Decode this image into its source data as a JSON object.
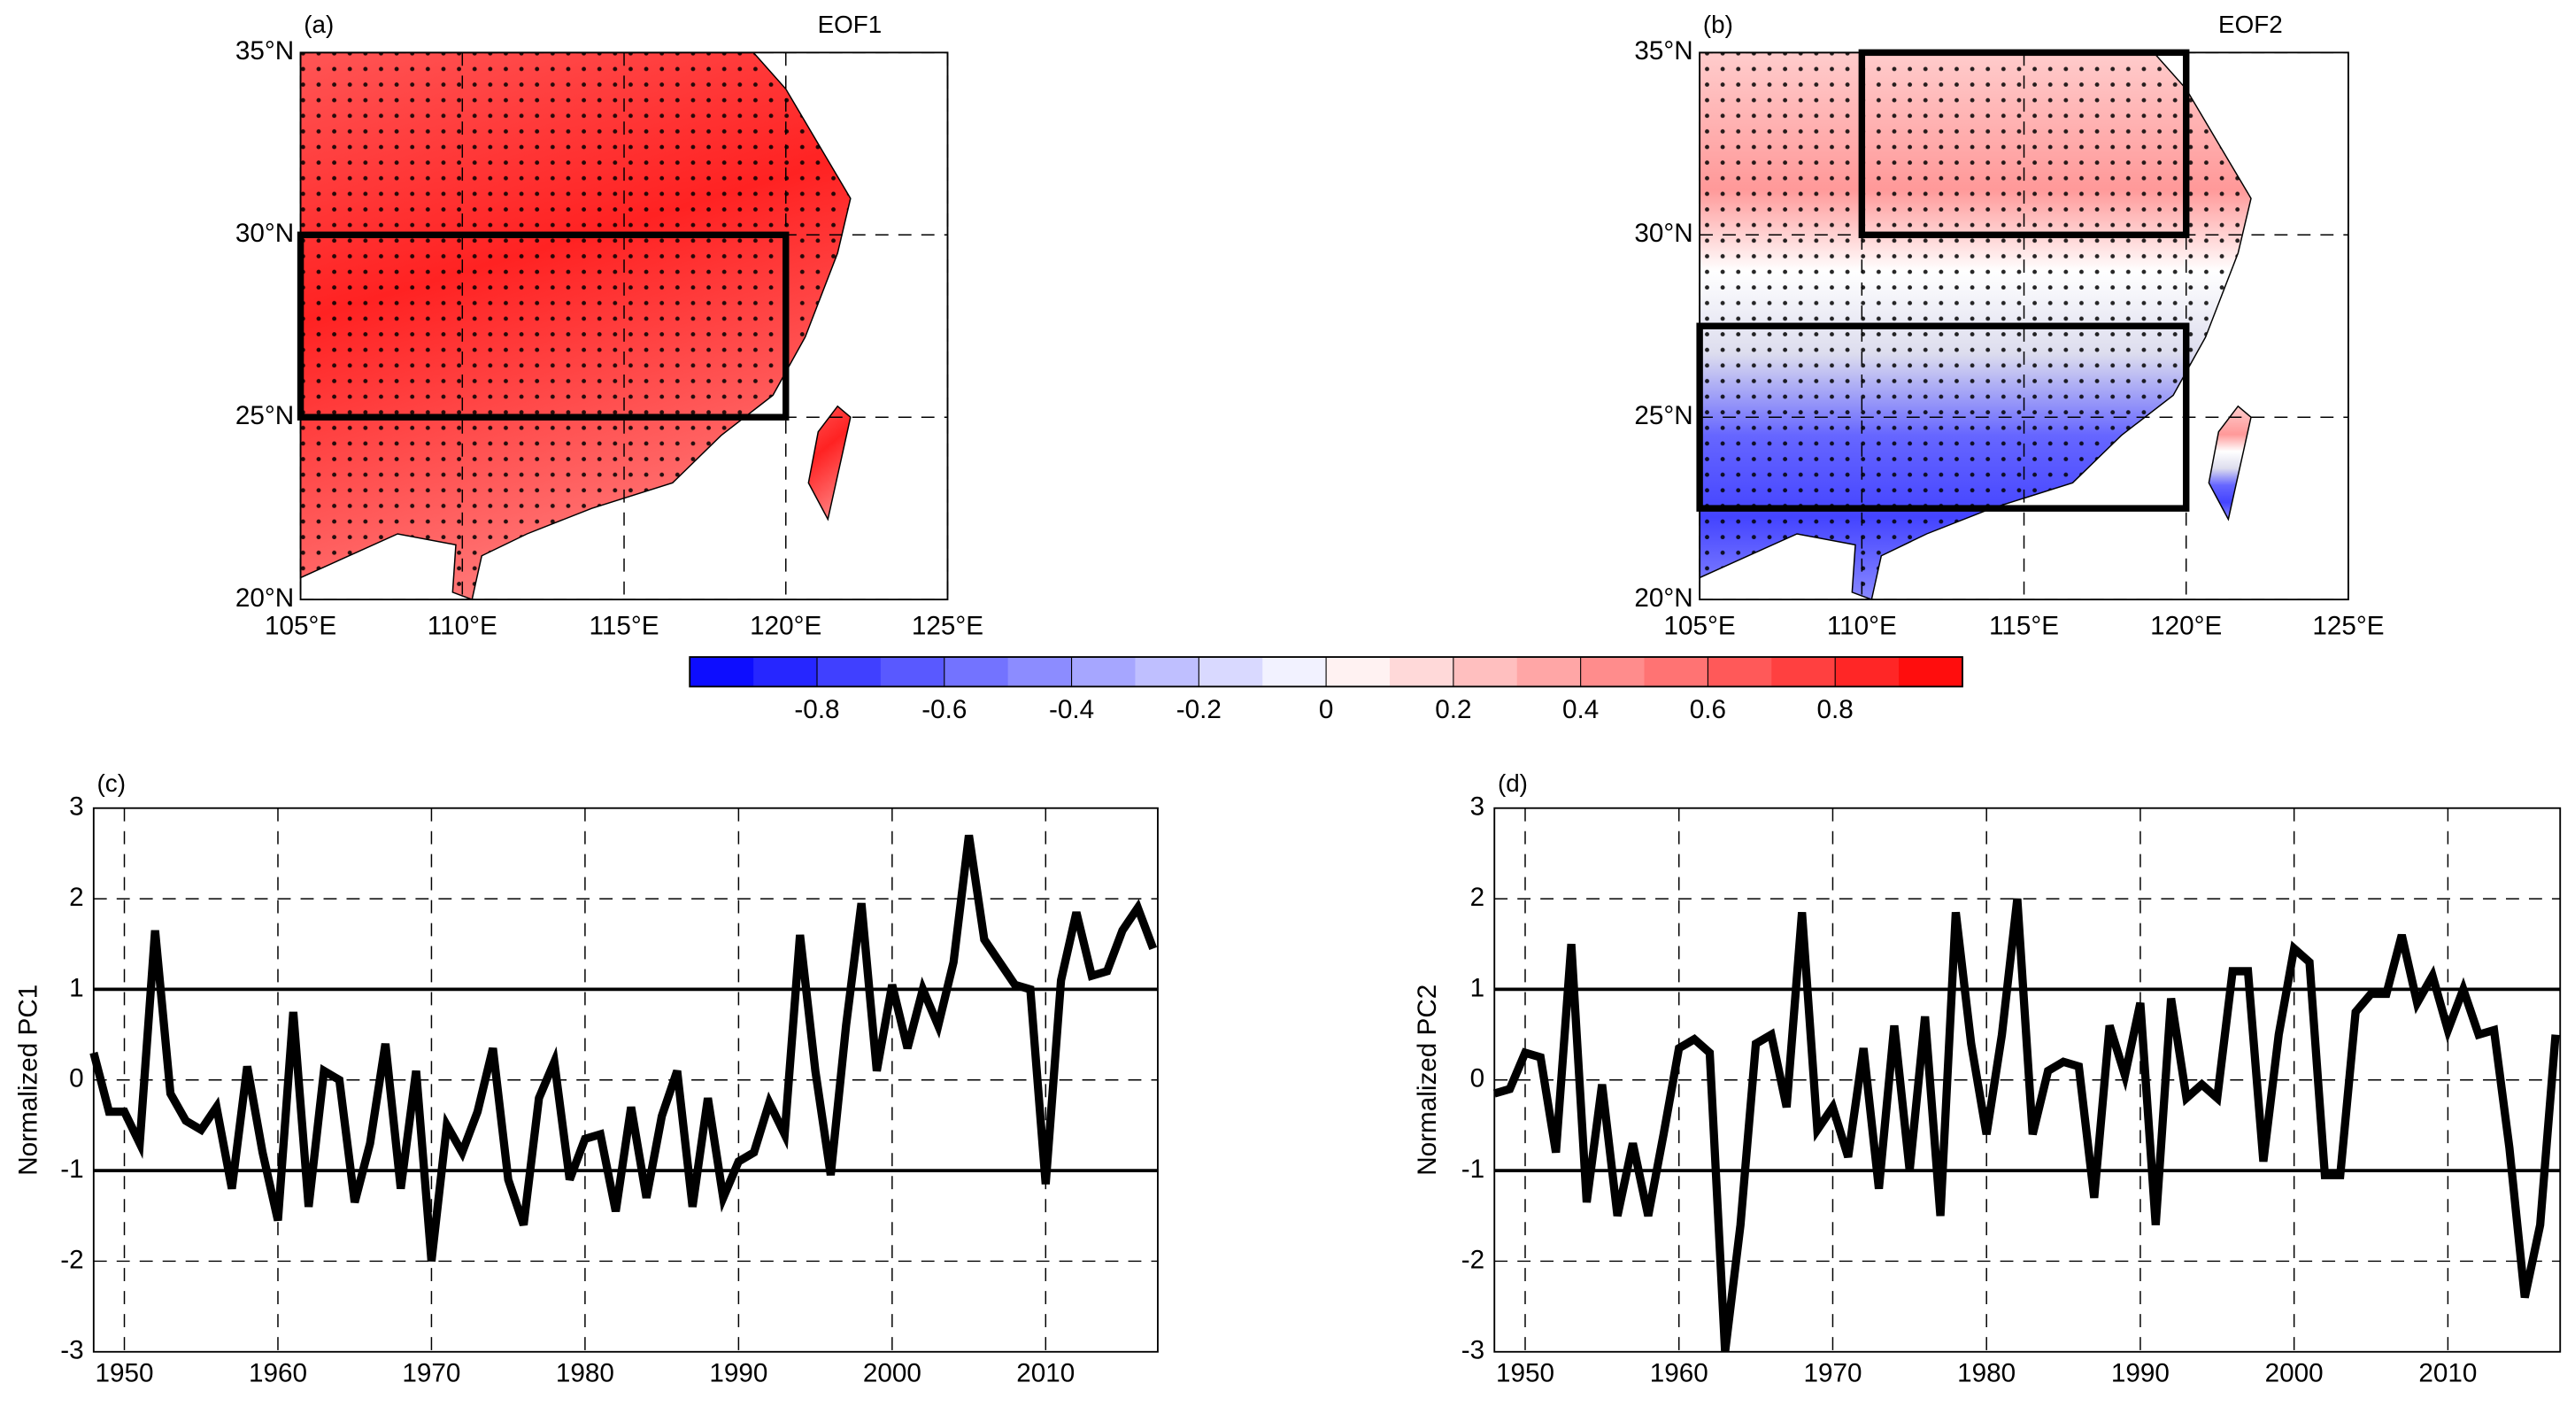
{
  "chart_data": [
    {
      "type": "map",
      "panel": "(a)",
      "title": "EOF1",
      "xlim": [
        105,
        125
      ],
      "ylim": [
        20,
        35
      ],
      "xticks": [
        {
          "value": 105,
          "label": "105°E"
        },
        {
          "value": 110,
          "label": "110°E"
        },
        {
          "value": 115,
          "label": "115°E"
        },
        {
          "value": 120,
          "label": "120°E"
        },
        {
          "value": 125,
          "label": "125°E"
        }
      ],
      "yticks": [
        {
          "value": 20,
          "label": "20°N"
        },
        {
          "value": 25,
          "label": "25°N"
        },
        {
          "value": 30,
          "label": "30°N"
        },
        {
          "value": 35,
          "label": "35°N"
        }
      ],
      "grid": true,
      "boxes": [
        {
          "lon": [
            105,
            120
          ],
          "lat": [
            25,
            30
          ]
        }
      ]
    },
    {
      "type": "map",
      "panel": "(b)",
      "title": "EOF2",
      "xlim": [
        105,
        125
      ],
      "ylim": [
        20,
        35
      ],
      "xticks": [
        {
          "value": 105,
          "label": "105°E"
        },
        {
          "value": 110,
          "label": "110°E"
        },
        {
          "value": 115,
          "label": "115°E"
        },
        {
          "value": 120,
          "label": "120°E"
        },
        {
          "value": 125,
          "label": "125°E"
        }
      ],
      "yticks": [
        {
          "value": 20,
          "label": "20°N"
        },
        {
          "value": 25,
          "label": "25°N"
        },
        {
          "value": 30,
          "label": "30°N"
        },
        {
          "value": 35,
          "label": "35°N"
        }
      ],
      "grid": true,
      "boxes": [
        {
          "lon": [
            110,
            120
          ],
          "lat": [
            30,
            35
          ]
        },
        {
          "lon": [
            105,
            120
          ],
          "lat": [
            22.5,
            27.5
          ]
        }
      ]
    },
    {
      "type": "colorbar",
      "xlim": [
        -1,
        1
      ],
      "xticks": [
        -0.8,
        -0.6,
        -0.4,
        -0.2,
        0,
        0.2,
        0.4,
        0.6,
        0.8
      ],
      "colors": [
        "#0000ff",
        "#ffffff",
        "#ff0000"
      ]
    },
    {
      "type": "line",
      "panel": "(c)",
      "ylabel": "Normalized  PC1",
      "color": "#000000",
      "x": [
        1948,
        1949,
        1950,
        1951,
        1952,
        1953,
        1954,
        1955,
        1956,
        1957,
        1958,
        1959,
        1960,
        1961,
        1962,
        1963,
        1964,
        1965,
        1966,
        1967,
        1968,
        1969,
        1970,
        1971,
        1972,
        1973,
        1974,
        1975,
        1976,
        1977,
        1978,
        1979,
        1980,
        1981,
        1982,
        1983,
        1984,
        1985,
        1986,
        1987,
        1988,
        1989,
        1990,
        1991,
        1992,
        1993,
        1994,
        1995,
        1996,
        1997,
        1998,
        1999,
        2000,
        2001,
        2002,
        2003,
        2004,
        2005,
        2006,
        2007,
        2008,
        2009,
        2010,
        2011,
        2012,
        2013,
        2014,
        2015,
        2016,
        2017
      ],
      "values": [
        0.3,
        -0.35,
        -0.35,
        -0.7,
        1.65,
        -0.15,
        -0.45,
        -0.55,
        -0.3,
        -1.2,
        0.15,
        -0.8,
        -1.55,
        0.75,
        -1.4,
        0.1,
        0.0,
        -1.35,
        -0.7,
        0.4,
        -1.2,
        0.1,
        -2.0,
        -0.5,
        -0.8,
        -0.35,
        0.35,
        -1.1,
        -1.6,
        -0.2,
        0.2,
        -1.1,
        -0.65,
        -0.6,
        -1.45,
        -0.3,
        -1.3,
        -0.4,
        0.1,
        -1.4,
        -0.2,
        -1.3,
        -0.9,
        -0.8,
        -0.25,
        -0.6,
        1.6,
        0.1,
        -1.05,
        0.6,
        1.95,
        0.1,
        1.05,
        0.35,
        1.0,
        0.6,
        1.3,
        2.7,
        1.55,
        1.3,
        1.05,
        1.0,
        -1.15,
        1.1,
        1.85,
        1.15,
        1.2,
        1.65,
        1.9,
        1.45
      ],
      "xlim": [
        1948,
        2017.3
      ],
      "ylim": [
        -3,
        3
      ],
      "xticks": [
        1950,
        1960,
        1970,
        1980,
        1990,
        2000,
        2010
      ],
      "yticks": [
        -3,
        -2,
        -1,
        0,
        1,
        2,
        3
      ],
      "reference_lines": [
        -1,
        1
      ],
      "grid": true
    },
    {
      "type": "line",
      "panel": "(d)",
      "ylabel": "Normalized  PC2",
      "color": "#000000",
      "x": [
        1948,
        1949,
        1950,
        1951,
        1952,
        1953,
        1954,
        1955,
        1956,
        1957,
        1958,
        1959,
        1960,
        1961,
        1962,
        1963,
        1964,
        1965,
        1966,
        1967,
        1968,
        1969,
        1970,
        1971,
        1972,
        1973,
        1974,
        1975,
        1976,
        1977,
        1978,
        1979,
        1980,
        1981,
        1982,
        1983,
        1984,
        1985,
        1986,
        1987,
        1988,
        1989,
        1990,
        1991,
        1992,
        1993,
        1994,
        1995,
        1996,
        1997,
        1998,
        1999,
        2000,
        2001,
        2002,
        2003,
        2004,
        2005,
        2006,
        2007,
        2008,
        2009,
        2010,
        2011,
        2012,
        2013,
        2014,
        2015,
        2016,
        2017
      ],
      "values": [
        -0.15,
        -0.1,
        0.3,
        0.25,
        -0.8,
        1.5,
        -1.35,
        -0.05,
        -1.5,
        -0.7,
        -1.5,
        -0.6,
        0.35,
        0.45,
        0.3,
        -3.0,
        -1.6,
        0.4,
        0.5,
        -0.3,
        1.85,
        -0.55,
        -0.3,
        -0.85,
        0.35,
        -1.2,
        0.6,
        -1.0,
        0.7,
        -1.5,
        1.85,
        0.4,
        -0.6,
        0.5,
        2.0,
        -0.6,
        0.1,
        0.2,
        0.15,
        -1.3,
        0.6,
        0.05,
        0.85,
        -1.6,
        0.9,
        -0.2,
        -0.05,
        -0.2,
        1.2,
        1.2,
        -0.9,
        0.5,
        1.45,
        1.3,
        -1.05,
        -1.05,
        0.75,
        0.95,
        0.95,
        1.6,
        0.85,
        1.15,
        0.55,
        1.0,
        0.5,
        0.55,
        -0.75,
        -2.4,
        -1.6,
        0.5
      ],
      "xlim": [
        1948,
        2017.3
      ],
      "ylim": [
        -3,
        3
      ],
      "xticks": [
        1950,
        1960,
        1970,
        1980,
        1990,
        2000,
        2010
      ],
      "yticks": [
        -3,
        -2,
        -1,
        0,
        1,
        2,
        3
      ],
      "reference_lines": [
        -1,
        1
      ],
      "grid": true
    }
  ]
}
